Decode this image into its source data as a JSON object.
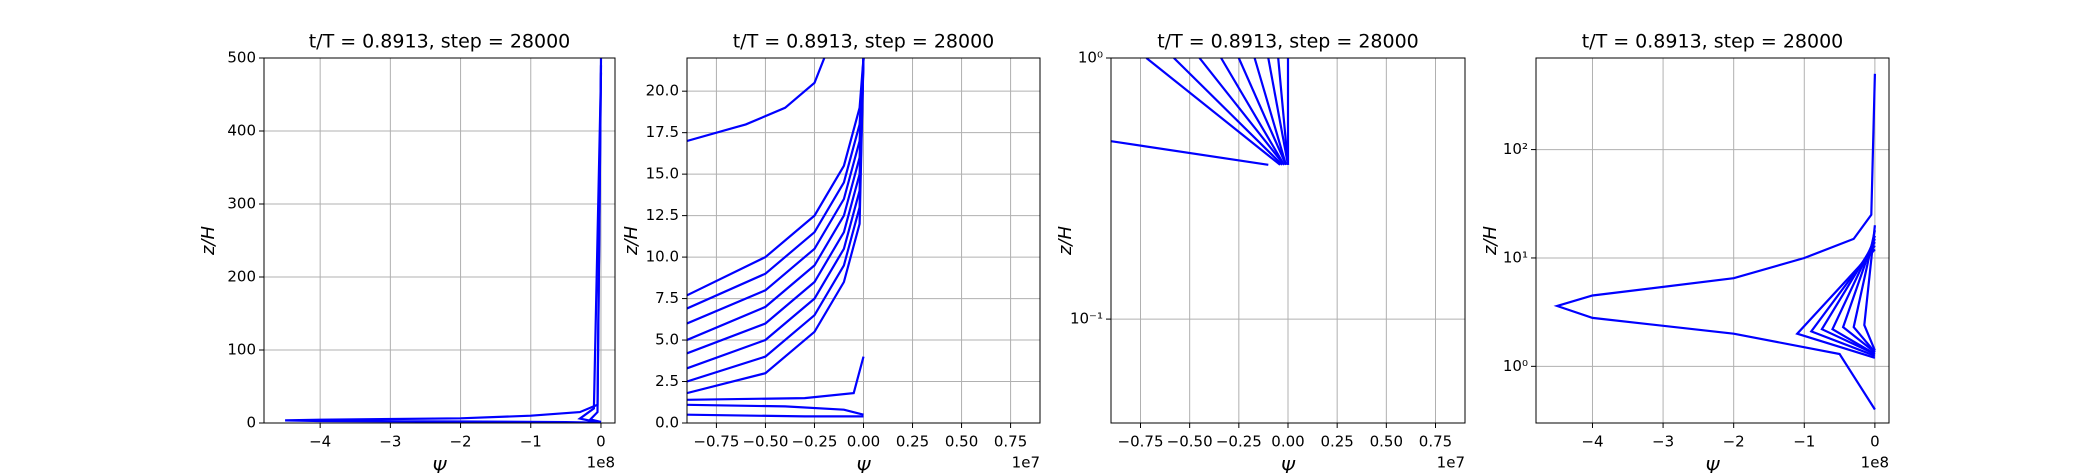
{
  "chart_data": [
    {
      "type": "line",
      "title": "t/T = 0.8913, step = 28000",
      "xlabel": "Ψ",
      "ylabel": "z/H",
      "x_offset": "1e8",
      "xlim": [
        -4.8,
        0.2
      ],
      "ylim": [
        0,
        500
      ],
      "ylog": false,
      "grid": true,
      "xticks": [
        {
          "value": -4,
          "label": "−4"
        },
        {
          "value": -3,
          "label": "−3"
        },
        {
          "value": -2,
          "label": "−2"
        },
        {
          "value": -1,
          "label": "−1"
        },
        0
      ],
      "yticks": [
        0,
        100,
        200,
        300,
        400,
        500
      ],
      "series": [
        {
          "color": "#0000ff",
          "x": [
            0,
            -0.05,
            -0.3,
            -1,
            -2,
            -4,
            -4.5,
            -4,
            -2,
            -0.5,
            0
          ],
          "values": [
            500,
            25,
            15,
            10,
            6.5,
            4.5,
            3.6,
            2.8,
            2,
            1.3,
            0.4
          ]
        },
        {
          "color": "#0000ff",
          "x": [
            0,
            -0.1,
            -0.3,
            -0.1,
            0
          ],
          "values": [
            480,
            20,
            6,
            2,
            1
          ]
        },
        {
          "color": "#0000ff",
          "x": [
            0,
            -0.05,
            -0.15,
            0
          ],
          "values": [
            490,
            15,
            5,
            1.5
          ]
        }
      ]
    },
    {
      "type": "line",
      "title": "t/T = 0.8913, step = 28000",
      "xlabel": "Ψ",
      "ylabel": "z/H",
      "x_offset": "1e7",
      "xlim": [
        -0.9,
        0.9
      ],
      "ylim": [
        0,
        22
      ],
      "ylog": false,
      "grid": true,
      "xticks": [
        {
          "value": -0.75,
          "label": "−0.75"
        },
        {
          "value": -0.5,
          "label": "−0.50"
        },
        {
          "value": -0.25,
          "label": "−0.25"
        },
        {
          "value": 0,
          "label": "0.00"
        },
        0.25,
        {
          "value": 0.5,
          "label": "0.50"
        },
        0.75
      ],
      "yticks": [
        {
          "value": 0,
          "label": "0.0"
        },
        2.5,
        {
          "value": 5,
          "label": "5.0"
        },
        7.5,
        {
          "value": 10,
          "label": "10.0"
        },
        12.5,
        {
          "value": 15,
          "label": "15.0"
        },
        17.5,
        {
          "value": 20,
          "label": "20.0"
        }
      ],
      "series": [
        {
          "color": "#0000ff",
          "x": [
            -0.9,
            -0.6,
            -0.4,
            -0.25,
            -0.2
          ],
          "values": [
            17,
            18,
            19,
            20.5,
            22
          ]
        },
        {
          "color": "#0000ff",
          "x": [
            -0.9,
            -0.5,
            -0.25,
            -0.1,
            -0.02,
            0
          ],
          "values": [
            7.7,
            10,
            12.5,
            15.5,
            19,
            22
          ]
        },
        {
          "color": "#0000ff",
          "x": [
            -0.9,
            -0.5,
            -0.25,
            -0.1,
            -0.02,
            0
          ],
          "values": [
            6.9,
            9,
            11.5,
            14.5,
            18,
            22
          ]
        },
        {
          "color": "#0000ff",
          "x": [
            -0.9,
            -0.5,
            -0.25,
            -0.1,
            -0.02,
            0
          ],
          "values": [
            6.0,
            8,
            10.5,
            13.5,
            17,
            22
          ]
        },
        {
          "color": "#0000ff",
          "x": [
            -0.9,
            -0.5,
            -0.25,
            -0.1,
            -0.02,
            0
          ],
          "values": [
            5.0,
            7,
            9.5,
            12.5,
            16,
            22
          ]
        },
        {
          "color": "#0000ff",
          "x": [
            -0.9,
            -0.5,
            -0.25,
            -0.1,
            -0.02,
            0
          ],
          "values": [
            4.2,
            6,
            8.5,
            11.5,
            15,
            22
          ]
        },
        {
          "color": "#0000ff",
          "x": [
            -0.9,
            -0.5,
            -0.25,
            -0.1,
            -0.02,
            0
          ],
          "values": [
            3.3,
            5,
            7.5,
            10.5,
            14,
            22
          ]
        },
        {
          "color": "#0000ff",
          "x": [
            -0.9,
            -0.5,
            -0.25,
            -0.1,
            -0.02,
            0
          ],
          "values": [
            2.5,
            4,
            6.5,
            9.5,
            13,
            22
          ]
        },
        {
          "color": "#0000ff",
          "x": [
            -0.9,
            -0.5,
            -0.25,
            -0.1,
            -0.02,
            0
          ],
          "values": [
            1.8,
            3,
            5.5,
            8.5,
            12,
            22
          ]
        },
        {
          "color": "#0000ff",
          "x": [
            -0.9,
            -0.3,
            -0.05,
            0
          ],
          "values": [
            1.4,
            1.5,
            1.8,
            4
          ]
        },
        {
          "color": "#0000ff",
          "x": [
            -0.9,
            -0.4,
            -0.1,
            0
          ],
          "values": [
            1.1,
            1.0,
            0.8,
            0.5
          ]
        },
        {
          "color": "#0000ff",
          "x": [
            -0.9,
            -0.3,
            0
          ],
          "values": [
            0.5,
            0.4,
            0.4
          ]
        }
      ]
    },
    {
      "type": "line",
      "title": "t/T = 0.8913, step = 28000",
      "xlabel": "Ψ",
      "ylabel": "z/H",
      "x_offset": "1e7",
      "xlim": [
        -0.9,
        0.9
      ],
      "ylim": [
        0.04,
        1
      ],
      "ylog": true,
      "grid": true,
      "xticks": [
        {
          "value": -0.75,
          "label": "−0.75"
        },
        {
          "value": -0.5,
          "label": "−0.50"
        },
        {
          "value": -0.25,
          "label": "−0.25"
        },
        {
          "value": 0,
          "label": "0.00"
        },
        0.25,
        {
          "value": 0.5,
          "label": "0.50"
        },
        0.75
      ],
      "yticks": [
        {
          "value": 0.1,
          "label": "10⁻¹"
        },
        {
          "value": 1,
          "label": "10⁰"
        }
      ],
      "series": [
        {
          "color": "#0000ff",
          "x": [
            -0.9,
            -0.1
          ],
          "values": [
            0.48,
            0.39
          ]
        },
        {
          "color": "#0000ff",
          "x": [
            -0.04,
            -0.72
          ],
          "values": [
            0.39,
            1
          ]
        },
        {
          "color": "#0000ff",
          "x": [
            -0.03,
            -0.58
          ],
          "values": [
            0.39,
            1
          ]
        },
        {
          "color": "#0000ff",
          "x": [
            -0.02,
            -0.45
          ],
          "values": [
            0.39,
            1
          ]
        },
        {
          "color": "#0000ff",
          "x": [
            -0.02,
            -0.34
          ],
          "values": [
            0.39,
            1
          ]
        },
        {
          "color": "#0000ff",
          "x": [
            -0.01,
            -0.25
          ],
          "values": [
            0.39,
            1
          ]
        },
        {
          "color": "#0000ff",
          "x": [
            -0.01,
            -0.17
          ],
          "values": [
            0.39,
            1
          ]
        },
        {
          "color": "#0000ff",
          "x": [
            0,
            -0.1
          ],
          "values": [
            0.39,
            1
          ]
        },
        {
          "color": "#0000ff",
          "x": [
            0,
            -0.05
          ],
          "values": [
            0.39,
            1
          ]
        },
        {
          "color": "#0000ff",
          "x": [
            0,
            0
          ],
          "values": [
            0.39,
            1
          ]
        }
      ]
    },
    {
      "type": "line",
      "title": "t/T = 0.8913, step = 28000",
      "xlabel": "Ψ",
      "ylabel": "z/H",
      "x_offset": "1e8",
      "xlim": [
        -4.8,
        0.2
      ],
      "ylim": [
        0.3,
        700
      ],
      "ylog": true,
      "grid": true,
      "xticks": [
        {
          "value": -4,
          "label": "−4"
        },
        {
          "value": -3,
          "label": "−3"
        },
        {
          "value": -2,
          "label": "−2"
        },
        {
          "value": -1,
          "label": "−1"
        },
        0
      ],
      "yticks": [
        {
          "value": 1,
          "label": "10⁰"
        },
        {
          "value": 10,
          "label": "10¹"
        },
        {
          "value": 100,
          "label": "10²"
        }
      ],
      "series": [
        {
          "color": "#0000ff",
          "x": [
            0,
            -0.05,
            -0.3,
            -1,
            -2,
            -4,
            -4.5,
            -4,
            -2,
            -0.5,
            0
          ],
          "values": [
            500,
            25,
            15,
            10,
            6.5,
            4.5,
            3.6,
            2.8,
            2,
            1.3,
            0.4
          ]
        },
        {
          "color": "#0000ff",
          "x": [
            0,
            -1.1,
            0
          ],
          "values": [
            12,
            2,
            1.2
          ]
        },
        {
          "color": "#0000ff",
          "x": [
            0,
            -0.9,
            0
          ],
          "values": [
            13,
            2.1,
            1.25
          ]
        },
        {
          "color": "#0000ff",
          "x": [
            0,
            -0.75,
            0
          ],
          "values": [
            14,
            2.2,
            1.3
          ]
        },
        {
          "color": "#0000ff",
          "x": [
            0,
            -0.6,
            0
          ],
          "values": [
            15,
            2.2,
            1.3
          ]
        },
        {
          "color": "#0000ff",
          "x": [
            0,
            -0.45,
            0
          ],
          "values": [
            16,
            2.3,
            1.35
          ]
        },
        {
          "color": "#0000ff",
          "x": [
            0,
            -0.3,
            0
          ],
          "values": [
            18,
            2.3,
            1.35
          ]
        },
        {
          "color": "#0000ff",
          "x": [
            0,
            -0.15,
            0
          ],
          "values": [
            20,
            2.4,
            1.4
          ]
        }
      ]
    }
  ]
}
